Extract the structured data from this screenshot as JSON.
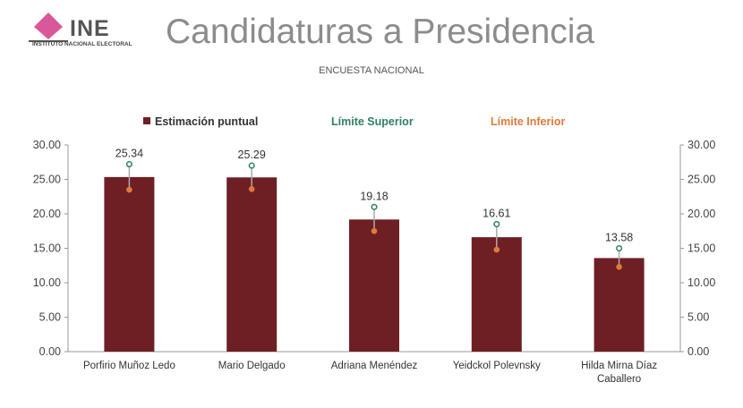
{
  "logo": {
    "text": "INE",
    "subtitle": "INSTITUTO NACIONAL ELECTORAL"
  },
  "title": "Candidaturas a Presidencia",
  "subtitle": "ENCUESTA NACIONAL",
  "colors": {
    "bar": "#6e1f24",
    "upper": "#2e7f6a",
    "lower": "#e07a3a",
    "logo_pink": "#d9589a",
    "axis": "#999999"
  },
  "chart_data": {
    "type": "bar",
    "categories": [
      "Porfirio Muñoz Ledo",
      "Mario Delgado",
      "Adriana Menéndez",
      "Yeidckol Polevnsky",
      "Hilda Mirna Díaz Caballero"
    ],
    "series": [
      {
        "name": "Estimación puntual",
        "values": [
          25.34,
          25.29,
          19.18,
          16.61,
          13.58
        ]
      },
      {
        "name": "Límite Superior",
        "values": [
          27.2,
          27.0,
          21.0,
          18.5,
          15.0
        ]
      },
      {
        "name": "Límite Inferior",
        "values": [
          23.5,
          23.6,
          17.5,
          14.8,
          12.3
        ]
      }
    ],
    "value_labels": [
      "25.34",
      "25.29",
      "19.18",
      "16.61",
      "13.58"
    ],
    "ylim": [
      0,
      30
    ],
    "yticks": [
      "0.00",
      "5.00",
      "10.00",
      "15.00",
      "20.00",
      "25.00",
      "30.00"
    ],
    "secondary_yticks": [
      "0.00",
      "5.00",
      "10.00",
      "15.00",
      "20.00",
      "25.00",
      "30.00"
    ],
    "legend": [
      "Estimación puntual",
      "Límite Superior",
      "Límite Inferior"
    ],
    "legend_position": "top",
    "grid": false
  }
}
